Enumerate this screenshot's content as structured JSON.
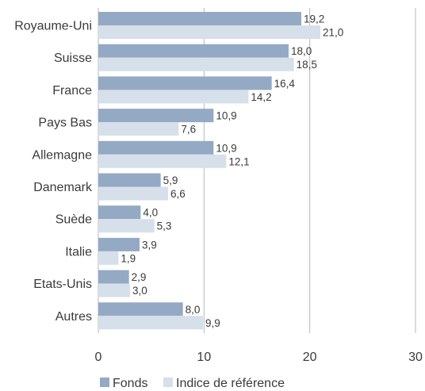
{
  "chart_data": {
    "type": "bar",
    "orientation": "horizontal",
    "categories": [
      "Royaume-Uni",
      "Suisse",
      "France",
      "Pays Bas",
      "Allemagne",
      "Danemark",
      "Suède",
      "Italie",
      "Etats-Unis",
      "Autres"
    ],
    "series": [
      {
        "name": "Fonds",
        "values": [
          19.2,
          18.0,
          16.4,
          10.9,
          10.9,
          5.9,
          4.0,
          3.9,
          2.9,
          8.0
        ],
        "labels": [
          "19,2",
          "18,0",
          "16,4",
          "10,9",
          "10,9",
          "5,9",
          "4,0",
          "3,9",
          "2,9",
          "8,0"
        ],
        "color": "#94a9c4"
      },
      {
        "name": "Indice de référence",
        "values": [
          21.0,
          18.5,
          14.2,
          7.6,
          12.1,
          6.6,
          5.3,
          1.9,
          3.0,
          9.9
        ],
        "labels": [
          "21,0",
          "18,5",
          "14,2",
          "7,6",
          "12,1",
          "6,6",
          "5,3",
          "1,9",
          "3,0",
          "9,9"
        ],
        "color": "#d6e0ea"
      }
    ],
    "xlim": [
      0,
      30
    ],
    "xticks": [
      0,
      10,
      20,
      30
    ],
    "xtick_labels": [
      "0",
      "10",
      "20",
      "30"
    ],
    "grid": true,
    "legend_position": "bottom"
  },
  "colors": {
    "gridline": "#b8b8b8",
    "text": "#3a3a3a"
  }
}
